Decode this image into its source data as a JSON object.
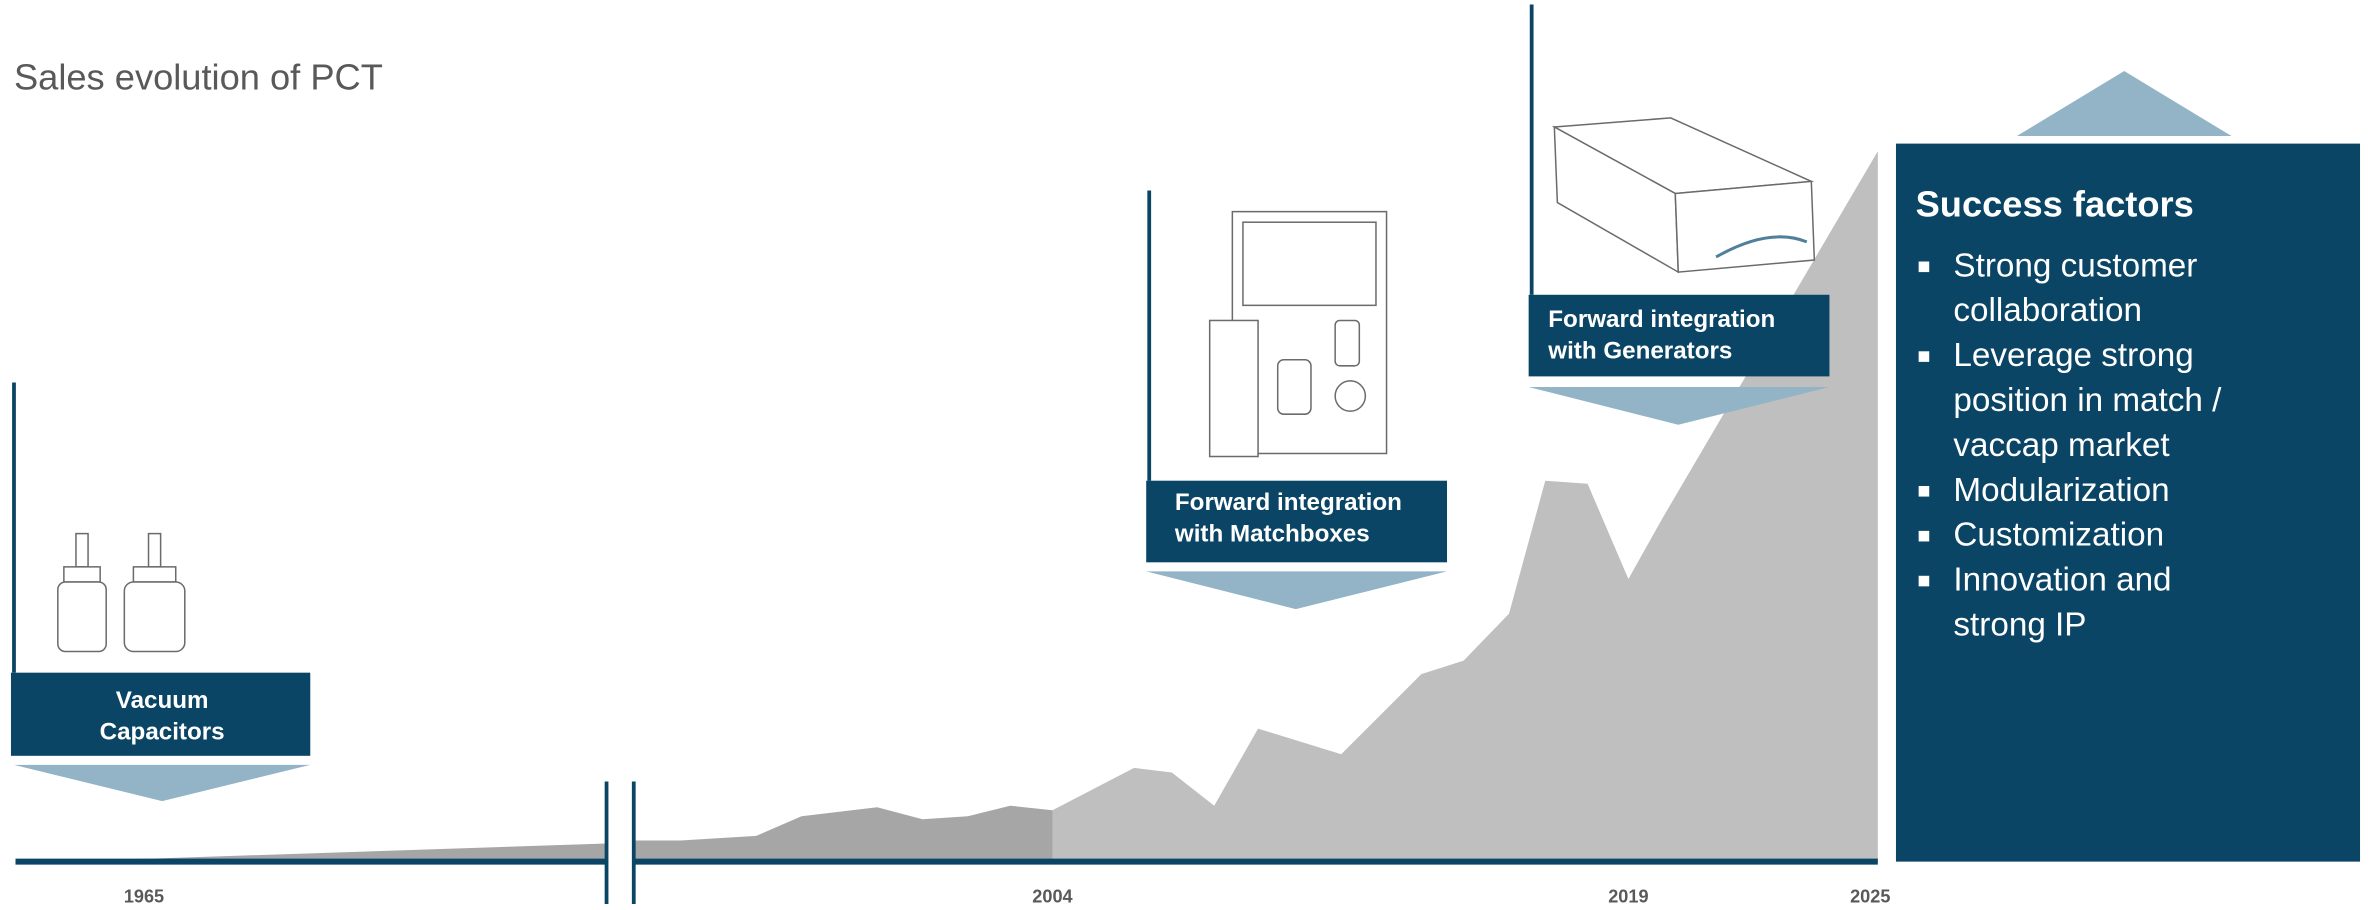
{
  "header": {
    "title": "Sales evolution of PCT"
  },
  "timeline": {
    "labels": [
      "1965",
      "2004",
      "2019",
      "2025"
    ]
  },
  "milestones": [
    {
      "lines": [
        "Vacuum",
        "Capacitors"
      ]
    },
    {
      "lines": [
        "Forward integration",
        "with Matchboxes"
      ]
    },
    {
      "lines": [
        "Forward integration",
        "with Generators"
      ]
    }
  ],
  "success_factors": {
    "title": "Success factors",
    "items": [
      {
        "lines": [
          "Strong customer",
          "collaboration"
        ]
      },
      {
        "lines": [
          "Leverage strong",
          "position in match /",
          "vaccap market"
        ]
      },
      {
        "lines": [
          "Modularization"
        ]
      },
      {
        "lines": [
          "Customization"
        ]
      },
      {
        "lines": [
          "Innovation and",
          "strong IP"
        ]
      }
    ]
  }
}
